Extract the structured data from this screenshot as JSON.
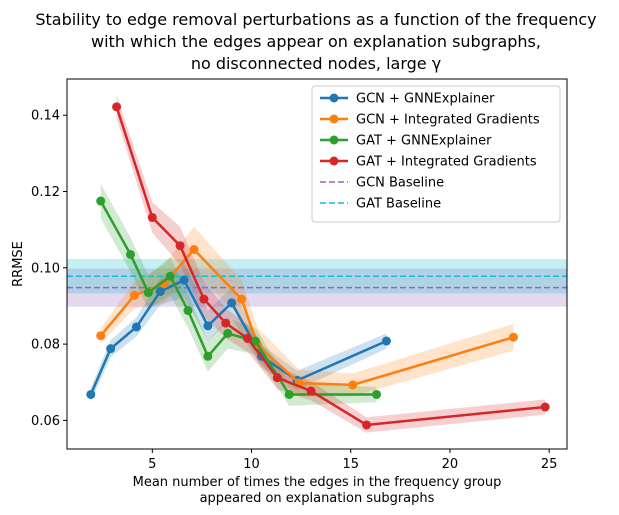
{
  "chart_data": {
    "type": "line",
    "title": [
      "Stability to edge removal perturbations as a function of the frequency",
      "with which the edges appear on explanation subgraphs,",
      "no disconnected nodes, large γ"
    ],
    "xlabel": [
      "Mean number of times the edges in the frequency group",
      "appeared on explanation subgraphs"
    ],
    "ylabel": "RRMSE",
    "xlim": [
      0.7,
      25.9
    ],
    "ylim": [
      0.0525,
      0.1495
    ],
    "xticks": [
      5,
      10,
      15,
      20,
      25
    ],
    "yticks": [
      0.06,
      0.08,
      0.1,
      0.12,
      0.14
    ],
    "ytick_labels": [
      "0.06",
      "0.08",
      "0.10",
      "0.12",
      "0.14"
    ],
    "grid": false,
    "legend_position": "top-right",
    "series": [
      {
        "name": "GCN + GNNExplainer",
        "color": "#1f77b4",
        "x": [
          1.9,
          2.9,
          4.2,
          5.4,
          6.6,
          7.8,
          9.0,
          10.5,
          12.3,
          16.8
        ],
        "y": [
          0.0668,
          0.0788,
          0.0845,
          0.0938,
          0.0968,
          0.0848,
          0.0908,
          0.0768,
          0.0705,
          0.0808
        ],
        "band": [
          0.0018,
          0.0022,
          0.0025,
          0.0035,
          0.0045,
          0.004,
          0.004,
          0.003,
          0.0025,
          0.002
        ]
      },
      {
        "name": "GCN + Integrated Gradients",
        "color": "#ff7f0e",
        "x": [
          2.4,
          4.1,
          5.6,
          7.1,
          9.5,
          10.3,
          12.4,
          15.1,
          23.2
        ],
        "y": [
          0.0822,
          0.0928,
          0.0958,
          0.1048,
          0.0918,
          0.0798,
          0.0698,
          0.0693,
          0.0818
        ],
        "band": [
          0.002,
          0.0035,
          0.005,
          0.006,
          0.005,
          0.0045,
          0.0035,
          0.003,
          0.0035
        ]
      },
      {
        "name": "GAT + GNNExplainer",
        "color": "#2ca02c",
        "x": [
          2.4,
          3.9,
          4.8,
          5.9,
          6.8,
          7.8,
          8.8,
          10.2,
          11.9,
          16.3
        ],
        "y": [
          0.1175,
          0.1035,
          0.0935,
          0.0978,
          0.0888,
          0.0768,
          0.0828,
          0.0808,
          0.0668,
          0.0668
        ],
        "band": [
          0.0045,
          0.0045,
          0.0045,
          0.005,
          0.0045,
          0.004,
          0.004,
          0.0035,
          0.003,
          0.002
        ]
      },
      {
        "name": "GAT + Integrated Gradients",
        "color": "#d62728",
        "x": [
          3.2,
          5.0,
          6.4,
          7.6,
          8.7,
          9.8,
          11.3,
          13.0,
          15.8,
          24.8
        ],
        "y": [
          0.1422,
          0.1132,
          0.1058,
          0.0918,
          0.0855,
          0.0815,
          0.0712,
          0.0677,
          0.0588,
          0.0635
        ],
        "band": [
          0.003,
          0.004,
          0.005,
          0.0045,
          0.004,
          0.0035,
          0.003,
          0.0025,
          0.002,
          0.002
        ]
      }
    ],
    "baselines": [
      {
        "name": "GCN Baseline",
        "color": "#9467bd",
        "y": 0.0948,
        "band": 0.005
      },
      {
        "name": "GAT Baseline",
        "color": "#17becf",
        "y": 0.0978,
        "band": 0.0045
      }
    ]
  }
}
